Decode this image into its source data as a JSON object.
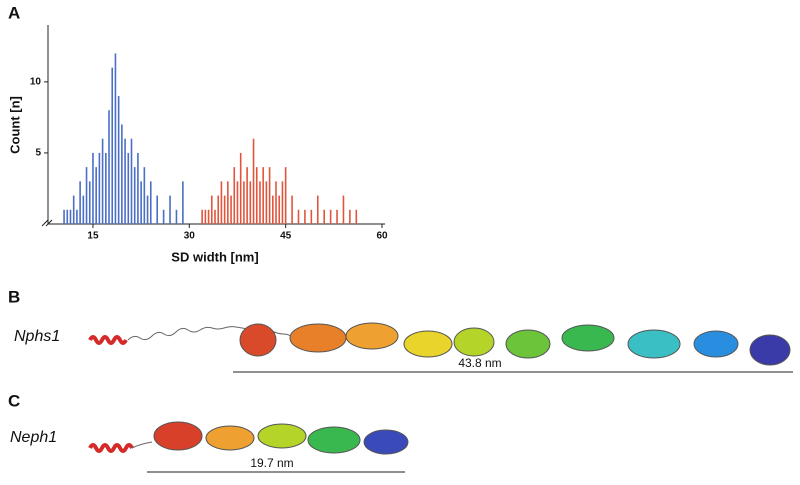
{
  "chart_data": {
    "type": "histogram",
    "xlabel": "SD width [nm]",
    "ylabel": "Count [n]",
    "xlim": [
      8,
      60
    ],
    "xticks": [
      15,
      30,
      45,
      60
    ],
    "ylim": [
      0,
      14
    ],
    "yticks": [
      5,
      10
    ],
    "series": [
      {
        "color": "#4a6fc4",
        "x": [
          10.5,
          11,
          11.5,
          12,
          12.5,
          13,
          13.5,
          14,
          14.5,
          15,
          15.5,
          16,
          16.5,
          17,
          17.5,
          18,
          18.5,
          19,
          19.5,
          20,
          20.5,
          21,
          21.5,
          22,
          22.5,
          23,
          23.5,
          24,
          25,
          26,
          27,
          28,
          29
        ],
        "values": [
          1,
          1,
          1,
          2,
          1,
          3,
          2,
          4,
          3,
          5,
          4,
          5,
          6,
          5,
          8,
          11,
          12,
          9,
          7,
          6,
          5,
          6,
          4,
          5,
          3,
          4,
          2,
          3,
          2,
          1,
          2,
          1,
          3
        ]
      },
      {
        "color": "#e0553c",
        "x": [
          32,
          32.5,
          33,
          33.5,
          34,
          34.5,
          35,
          35.5,
          36,
          36.5,
          37,
          37.5,
          38,
          38.5,
          39,
          39.5,
          40,
          40.5,
          41,
          41.5,
          42,
          42.5,
          43,
          43.5,
          44,
          44.5,
          45,
          46,
          47,
          48,
          49,
          50,
          51,
          52,
          53,
          54,
          55,
          56
        ],
        "values": [
          1,
          1,
          1,
          2,
          1,
          2,
          3,
          2,
          3,
          2,
          4,
          3,
          5,
          3,
          4,
          3,
          6,
          4,
          3,
          4,
          3,
          4,
          2,
          3,
          2,
          3,
          4,
          2,
          1,
          1,
          1,
          2,
          1,
          1,
          1,
          2,
          1,
          1
        ]
      }
    ]
  },
  "panels": {
    "a": "A",
    "b": "B",
    "c": "C"
  },
  "proteins": [
    {
      "name": "Nphs1",
      "length": "43.8 nm"
    },
    {
      "name": "Neph1",
      "length": "19.7 nm"
    }
  ]
}
